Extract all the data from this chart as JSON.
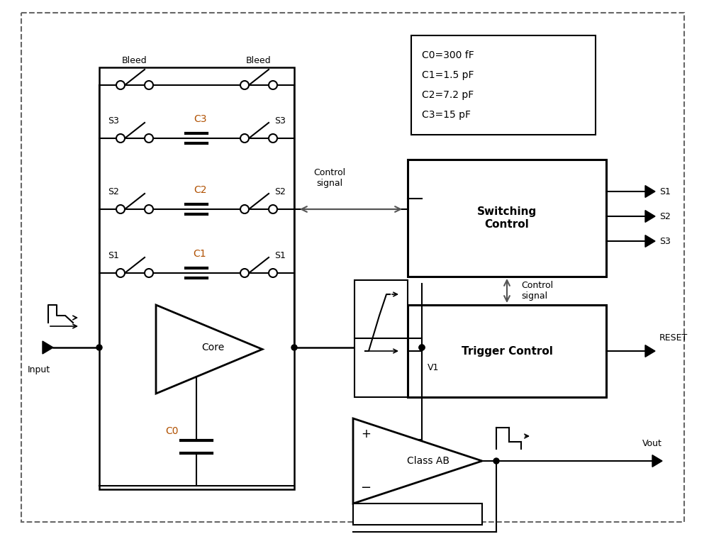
{
  "bg_color": "#ffffff",
  "line_color": "#000000",
  "cyan_color": "#b8860b",
  "gray_color": "#555555",
  "fig_width": 10.0,
  "fig_height": 7.53,
  "dpi": 100,
  "legend_text": [
    "C0=300 fF",
    "C1=1.5 pF",
    "C2=7.2 pF",
    "C3=15 pF"
  ]
}
